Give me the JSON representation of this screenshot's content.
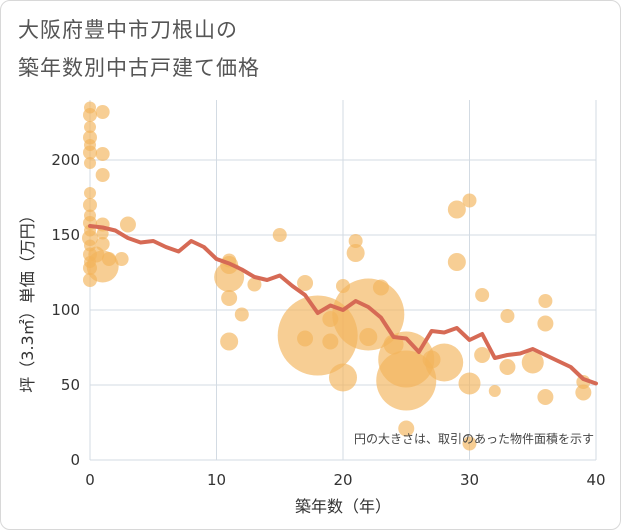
{
  "chart_data": {
    "type": "scatter",
    "title_line1": "大阪府豊中市刀根山の",
    "title_line2": "築年数別中古戸建て価格",
    "xlabel": "築年数（年）",
    "ylabel": "坪（3.3㎡）単価（万円）",
    "xlim": [
      0,
      40
    ],
    "ylim": [
      0,
      240
    ],
    "x_ticks": [
      0,
      10,
      20,
      30,
      40
    ],
    "y_ticks": [
      0,
      50,
      100,
      150,
      200
    ],
    "grid": true,
    "note": "円の大きさは、取引のあった物件面積を示す",
    "colors": {
      "bubble": "#f2b35a",
      "line": "#d66a55",
      "grid": "#d3dbe3"
    },
    "scatter": [
      {
        "x": 0,
        "y": 235,
        "s": 6
      },
      {
        "x": 0,
        "y": 230,
        "s": 7
      },
      {
        "x": 0,
        "y": 222,
        "s": 6
      },
      {
        "x": 0,
        "y": 215,
        "s": 7
      },
      {
        "x": 0,
        "y": 210,
        "s": 6
      },
      {
        "x": 0,
        "y": 205,
        "s": 7
      },
      {
        "x": 0,
        "y": 198,
        "s": 6
      },
      {
        "x": 0,
        "y": 178,
        "s": 6
      },
      {
        "x": 0,
        "y": 170,
        "s": 7
      },
      {
        "x": 0,
        "y": 163,
        "s": 6
      },
      {
        "x": 0,
        "y": 158,
        "s": 7
      },
      {
        "x": 0,
        "y": 153,
        "s": 6
      },
      {
        "x": 0,
        "y": 148,
        "s": 8
      },
      {
        "x": 0,
        "y": 143,
        "s": 6
      },
      {
        "x": 0,
        "y": 137,
        "s": 7
      },
      {
        "x": 0,
        "y": 132,
        "s": 6
      },
      {
        "x": 0,
        "y": 128,
        "s": 7
      },
      {
        "x": 0,
        "y": 120,
        "s": 7
      },
      {
        "x": 1,
        "y": 232,
        "s": 7
      },
      {
        "x": 1,
        "y": 204,
        "s": 7
      },
      {
        "x": 1,
        "y": 190,
        "s": 7
      },
      {
        "x": 1,
        "y": 157,
        "s": 7
      },
      {
        "x": 1,
        "y": 151,
        "s": 6
      },
      {
        "x": 1,
        "y": 144,
        "s": 7
      },
      {
        "x": 0.5,
        "y": 137,
        "s": 8
      },
      {
        "x": 1,
        "y": 129,
        "s": 16
      },
      {
        "x": 1.5,
        "y": 134,
        "s": 7
      },
      {
        "x": 2.5,
        "y": 134,
        "s": 7
      },
      {
        "x": 3,
        "y": 157,
        "s": 8
      },
      {
        "x": 11,
        "y": 133,
        "s": 7
      },
      {
        "x": 11,
        "y": 130,
        "s": 9
      },
      {
        "x": 11,
        "y": 122,
        "s": 15
      },
      {
        "x": 11,
        "y": 108,
        "s": 8
      },
      {
        "x": 11,
        "y": 79,
        "s": 9
      },
      {
        "x": 12,
        "y": 97,
        "s": 7
      },
      {
        "x": 13,
        "y": 117,
        "s": 7
      },
      {
        "x": 15,
        "y": 150,
        "s": 7
      },
      {
        "x": 17,
        "y": 118,
        "s": 8
      },
      {
        "x": 17,
        "y": 81,
        "s": 8
      },
      {
        "x": 18,
        "y": 83,
        "s": 40
      },
      {
        "x": 19,
        "y": 94,
        "s": 8
      },
      {
        "x": 19,
        "y": 79,
        "s": 8
      },
      {
        "x": 20,
        "y": 116,
        "s": 7
      },
      {
        "x": 20,
        "y": 55,
        "s": 14
      },
      {
        "x": 21,
        "y": 146,
        "s": 7
      },
      {
        "x": 21,
        "y": 138,
        "s": 9
      },
      {
        "x": 22,
        "y": 97,
        "s": 36
      },
      {
        "x": 22,
        "y": 82,
        "s": 9
      },
      {
        "x": 23,
        "y": 115,
        "s": 8
      },
      {
        "x": 24,
        "y": 77,
        "s": 10
      },
      {
        "x": 25,
        "y": 67,
        "s": 28
      },
      {
        "x": 25,
        "y": 53,
        "s": 30
      },
      {
        "x": 25,
        "y": 21,
        "s": 8
      },
      {
        "x": 27,
        "y": 67,
        "s": 9
      },
      {
        "x": 28,
        "y": 65,
        "s": 19
      },
      {
        "x": 29,
        "y": 167,
        "s": 9
      },
      {
        "x": 29,
        "y": 132,
        "s": 9
      },
      {
        "x": 30,
        "y": 173,
        "s": 7
      },
      {
        "x": 30,
        "y": 51,
        "s": 11
      },
      {
        "x": 30,
        "y": 11,
        "s": 7
      },
      {
        "x": 31,
        "y": 110,
        "s": 7
      },
      {
        "x": 31,
        "y": 70,
        "s": 8
      },
      {
        "x": 32,
        "y": 46,
        "s": 6
      },
      {
        "x": 33,
        "y": 96,
        "s": 7
      },
      {
        "x": 33,
        "y": 62,
        "s": 8
      },
      {
        "x": 35,
        "y": 65,
        "s": 11
      },
      {
        "x": 36,
        "y": 106,
        "s": 7
      },
      {
        "x": 36,
        "y": 91,
        "s": 8
      },
      {
        "x": 36,
        "y": 42,
        "s": 8
      },
      {
        "x": 39,
        "y": 52,
        "s": 7
      },
      {
        "x": 39,
        "y": 45,
        "s": 8
      }
    ],
    "line": {
      "x": [
        0,
        1,
        2,
        3,
        4,
        5,
        6,
        7,
        8,
        9,
        10,
        11,
        12,
        13,
        14,
        15,
        16,
        17,
        18,
        19,
        20,
        21,
        22,
        23,
        24,
        25,
        26,
        27,
        28,
        29,
        30,
        31,
        32,
        33,
        34,
        35,
        36,
        37,
        38,
        39,
        40
      ],
      "y": [
        156,
        155,
        153,
        148,
        145,
        146,
        142,
        139,
        146,
        142,
        134,
        131,
        127,
        122,
        120,
        123,
        116,
        110,
        98,
        103,
        100,
        106,
        102,
        95,
        82,
        81,
        72,
        86,
        85,
        88,
        80,
        84,
        68,
        70,
        71,
        74,
        70,
        66,
        62,
        54,
        51
      ]
    }
  }
}
